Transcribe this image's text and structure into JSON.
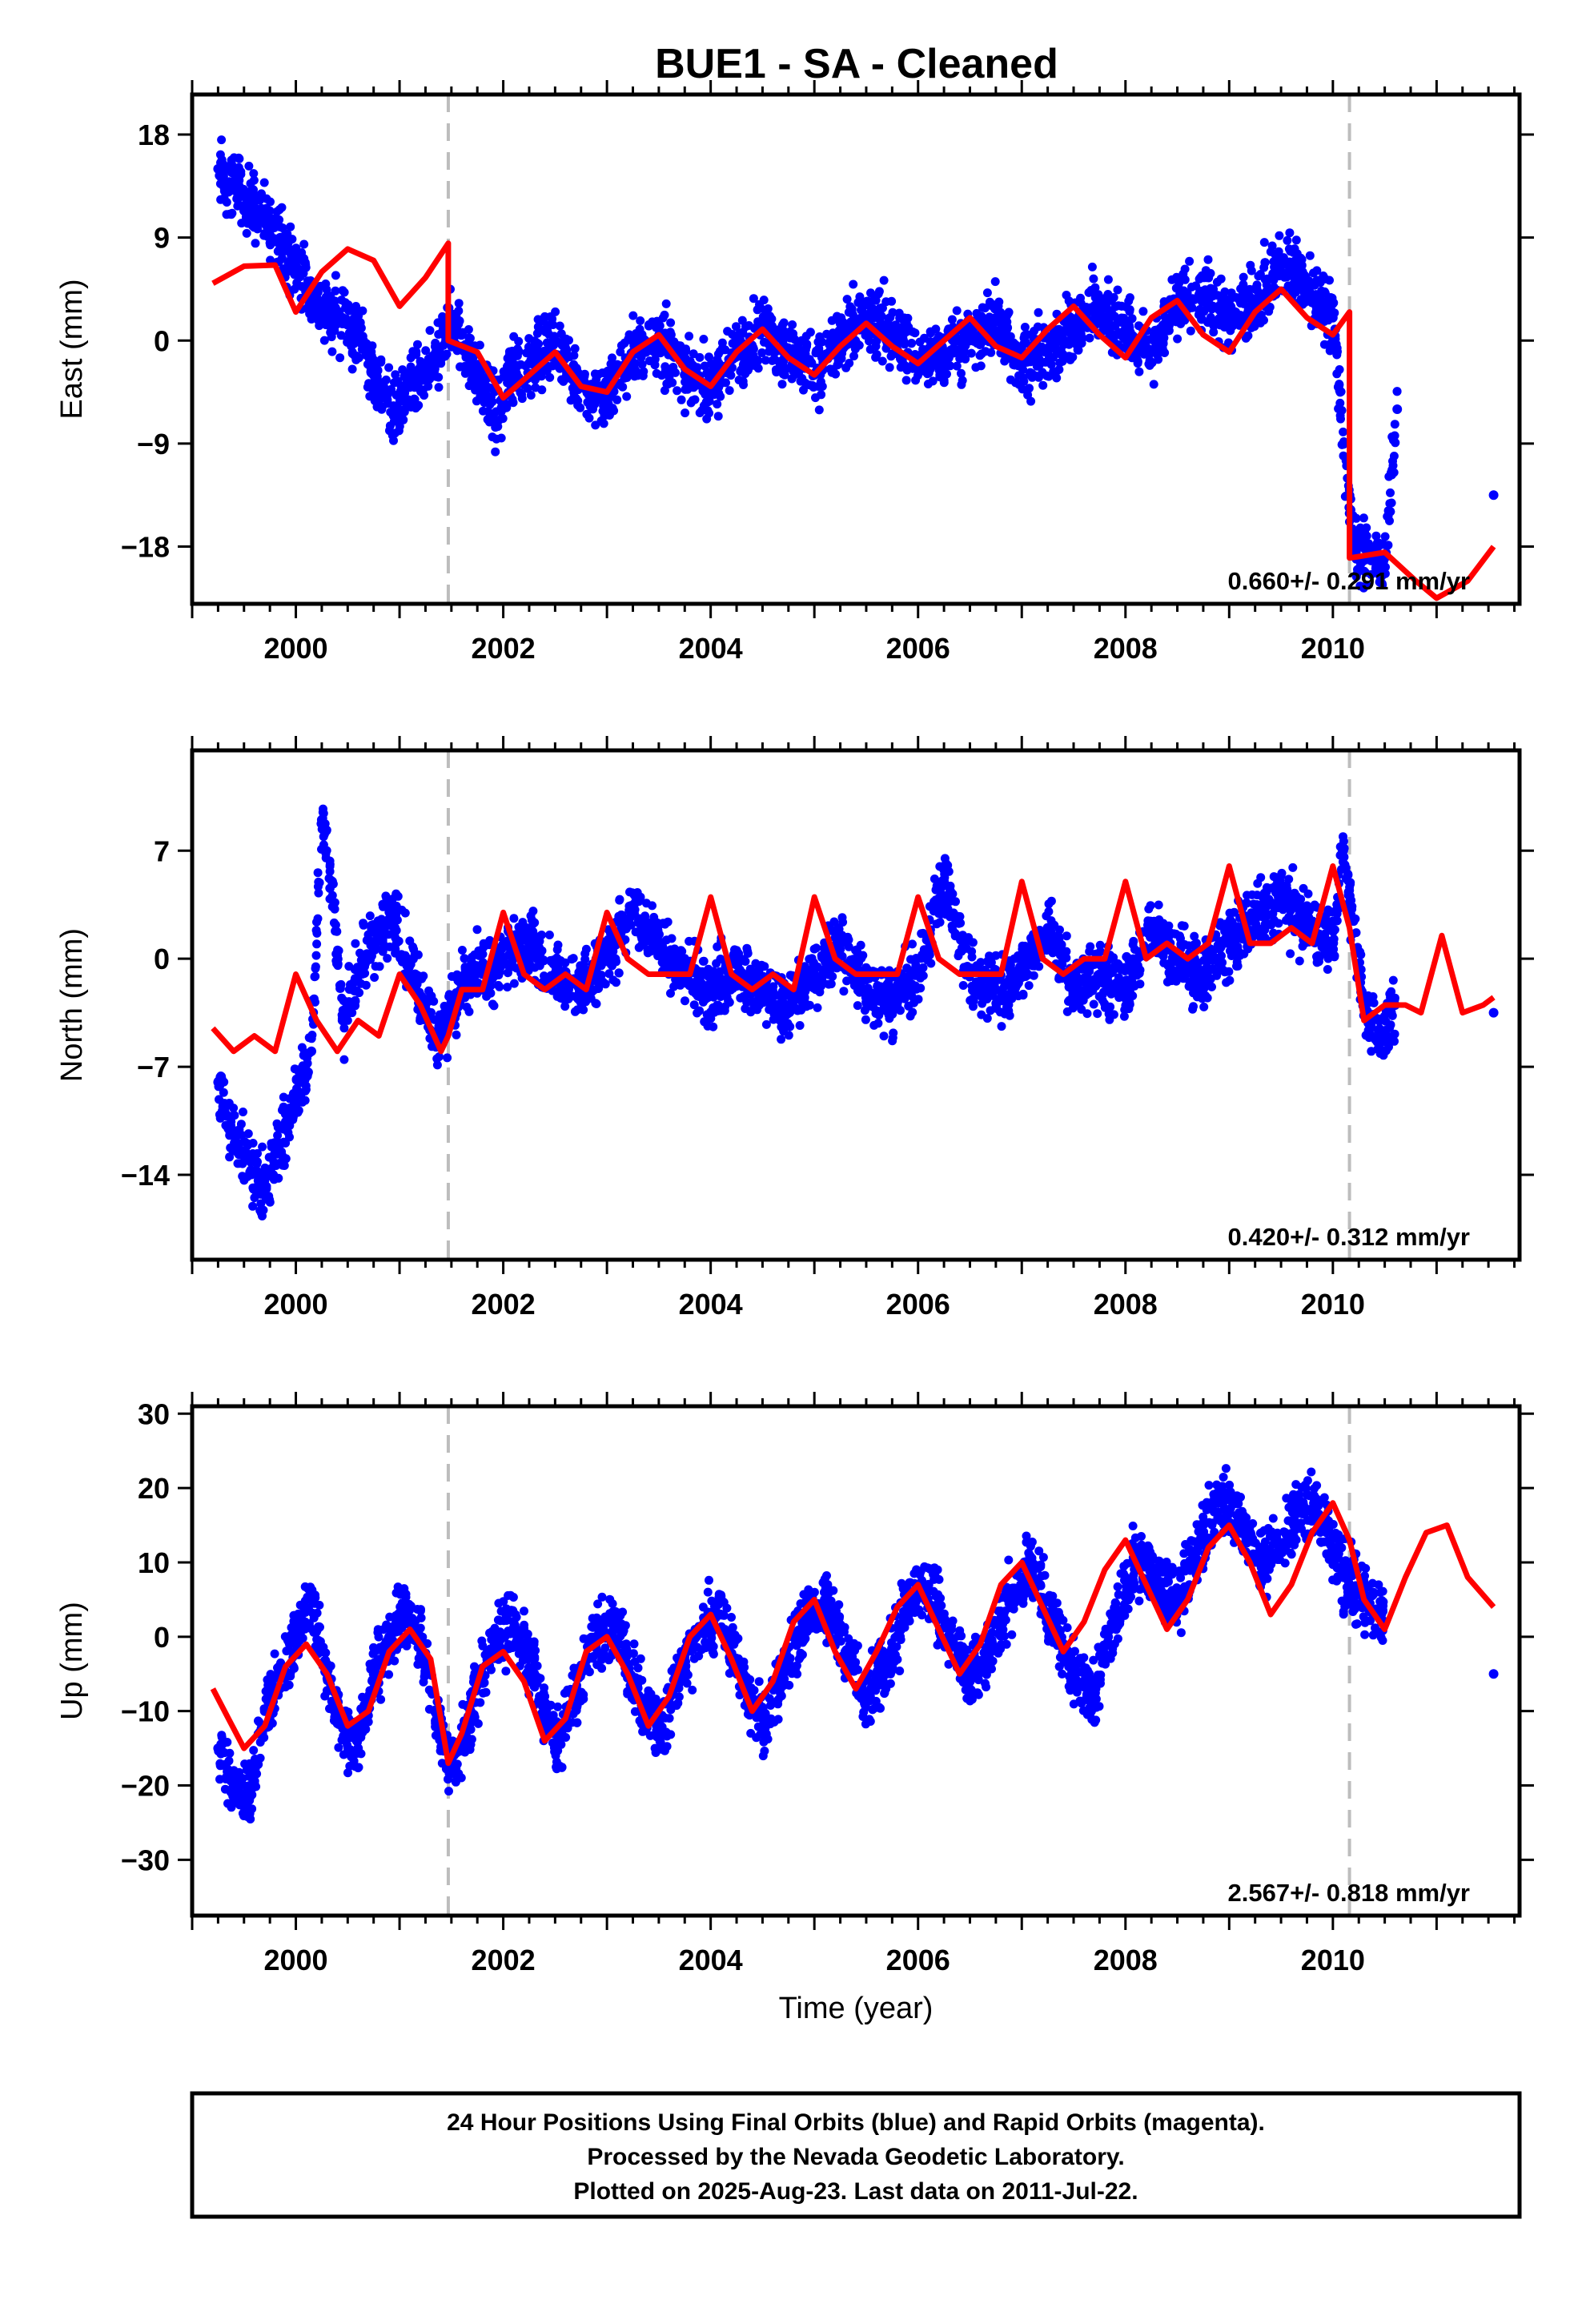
{
  "title": "BUE1  - SA - Cleaned",
  "colors": {
    "data": "#0000ff",
    "model": "#ff0000",
    "offset": "#bdbdbd",
    "frame": "#000000"
  },
  "footer": {
    "line1": "24 Hour Positions Using Final Orbits (blue) and Rapid Orbits (magenta).",
    "line2": "Processed by the Nevada Geodetic Laboratory.",
    "line3": "Plotted on 2025-Aug-23. Last data on 2011-Jul-22."
  },
  "chart_data": [
    {
      "type": "scatter",
      "panel": "east",
      "ylabel": "East (mm)",
      "xlabel": "",
      "xlim": [
        1999.0,
        2011.8
      ],
      "ylim": [
        -23,
        21.5
      ],
      "xticks": [
        "2000",
        "2002",
        "2004",
        "2006",
        "2008",
        "2010"
      ],
      "yticks": [
        "18",
        "9",
        "0",
        "−9",
        "−18"
      ],
      "ytick_values": [
        18,
        9,
        0,
        -9,
        -18
      ],
      "rate_label": "0.660+/- 0.291 mm/yr",
      "offsets": [
        2001.47,
        2010.16
      ],
      "series": [
        {
          "name": "",
          "kind": "points",
          "x": [
            1999.25,
            1999.35,
            1999.45,
            1999.55,
            1999.65,
            1999.75,
            1999.85,
            1999.95,
            2000.05,
            2000.15,
            2000.25,
            2000.35,
            2000.45,
            2000.55,
            2000.65,
            2000.75,
            2000.85,
            2000.95,
            2001.05,
            2001.15,
            2001.25,
            2001.35,
            2001.45,
            2001.55,
            2001.65,
            2001.75,
            2001.85,
            2001.95,
            2002.05,
            2002.25,
            2002.5,
            2002.75,
            2003.0,
            2003.25,
            2003.5,
            2003.75,
            2004.0,
            2004.25,
            2004.5,
            2004.75,
            2005.0,
            2005.25,
            2005.5,
            2005.75,
            2006.0,
            2006.25,
            2006.5,
            2006.75,
            2007.0,
            2007.25,
            2007.5,
            2007.75,
            2008.0,
            2008.25,
            2008.5,
            2008.75,
            2009.0,
            2009.25,
            2009.5,
            2009.75,
            2010.0,
            2010.2,
            2010.35,
            2010.5,
            2010.62,
            2011.55
          ],
          "y": [
            15,
            13,
            14,
            12,
            11,
            10,
            9,
            7,
            6,
            4,
            3,
            2,
            2,
            1,
            0,
            -3,
            -5,
            -6,
            -5,
            -4,
            -3,
            -2,
            1,
            1,
            -1,
            -3,
            -5,
            -7,
            -3,
            -2,
            0,
            -4,
            -5,
            -1,
            0,
            -3,
            -4,
            -1,
            1,
            -1,
            -3,
            0,
            2,
            1,
            -2,
            -1,
            0,
            2,
            -2,
            -1,
            1,
            3,
            1,
            -1,
            3,
            4,
            2,
            3,
            7,
            5,
            2,
            -18,
            -19,
            -19,
            -6,
            -13.5
          ]
        },
        {
          "name": "",
          "kind": "model",
          "x": [
            1999.2,
            1999.5,
            1999.8,
            2000.0,
            2000.25,
            2000.5,
            2000.75,
            2001.0,
            2001.25,
            2001.47,
            2001.47,
            2001.75,
            2002.0,
            2002.25,
            2002.5,
            2002.75,
            2003.0,
            2003.25,
            2003.5,
            2003.75,
            2004.0,
            2004.25,
            2004.5,
            2004.75,
            2005.0,
            2005.25,
            2005.5,
            2005.75,
            2006.0,
            2006.25,
            2006.5,
            2006.75,
            2007.0,
            2007.25,
            2007.5,
            2007.75,
            2008.0,
            2008.25,
            2008.5,
            2008.75,
            2009.0,
            2009.25,
            2009.5,
            2009.75,
            2010.0,
            2010.16,
            2010.16,
            2010.5,
            2010.8,
            2011.0,
            2011.3,
            2011.55
          ],
          "y": [
            5,
            6.5,
            6.6,
            2.5,
            6,
            8,
            7,
            3,
            5.5,
            8.5,
            0,
            -1,
            -5,
            -3,
            -1,
            -4,
            -4.5,
            -1,
            0.5,
            -2.5,
            -4,
            -1,
            1,
            -1.5,
            -3,
            -0.5,
            1.5,
            -0.5,
            -2,
            0,
            2,
            -0.5,
            -1.5,
            1,
            3,
            0.5,
            -1.5,
            2,
            3.5,
            0.5,
            -1,
            2.5,
            4.5,
            2,
            0.5,
            2.5,
            -19,
            -18.5,
            -21,
            -22.5,
            -21,
            -18
          ]
        }
      ]
    },
    {
      "type": "scatter",
      "panel": "north",
      "ylabel": "North (mm)",
      "xlabel": "",
      "xlim": [
        1999.0,
        2011.8
      ],
      "ylim": [
        -19.5,
        13.5
      ],
      "xticks": [
        "2000",
        "2002",
        "2004",
        "2006",
        "2008",
        "2010"
      ],
      "yticks": [
        "7",
        "0",
        "−7",
        "−14"
      ],
      "ytick_values": [
        7,
        0,
        -7,
        -14
      ],
      "rate_label": "0.420+/- 0.312 mm/yr",
      "offsets": [
        2001.47,
        2010.16
      ],
      "series": [
        {
          "name": "",
          "kind": "points",
          "x": [
            1999.25,
            1999.35,
            1999.45,
            1999.55,
            1999.65,
            1999.75,
            1999.85,
            1999.95,
            2000.05,
            2000.15,
            2000.25,
            2000.35,
            2000.45,
            2000.55,
            2000.65,
            2000.75,
            2000.85,
            2000.95,
            2001.05,
            2001.15,
            2001.25,
            2001.35,
            2001.45,
            2001.6,
            2001.8,
            2002.0,
            2002.25,
            2002.5,
            2002.75,
            2003.0,
            2003.25,
            2003.5,
            2003.75,
            2004.0,
            2004.25,
            2004.5,
            2004.75,
            2005.0,
            2005.25,
            2005.5,
            2005.75,
            2006.0,
            2006.25,
            2006.5,
            2006.75,
            2007.0,
            2007.25,
            2007.5,
            2007.75,
            2008.0,
            2008.25,
            2008.5,
            2008.75,
            2009.0,
            2009.25,
            2009.5,
            2009.75,
            2010.0,
            2010.1,
            2010.3,
            2010.45,
            2010.6,
            2011.55
          ],
          "y": [
            -8,
            -11,
            -12,
            -13,
            -15,
            -14,
            -12,
            -10,
            -8,
            -6,
            9,
            5,
            -4,
            -2,
            0,
            1,
            2,
            3,
            0,
            -1,
            -3,
            -5,
            -4,
            -2,
            -1,
            0,
            1,
            -1,
            -2,
            0,
            3,
            1,
            -1,
            -2,
            -1,
            -2,
            -3,
            -1,
            1,
            -2,
            -3,
            -1,
            5,
            -1,
            -2,
            -1,
            2,
            -2,
            -1,
            -2,
            2,
            0,
            -1,
            1,
            3,
            4,
            2,
            1,
            7,
            -3,
            -5,
            -3,
            -3.5
          ]
        },
        {
          "name": "",
          "kind": "model",
          "x": [
            1999.2,
            1999.4,
            1999.6,
            1999.8,
            2000.0,
            2000.2,
            2000.4,
            2000.6,
            2000.8,
            2001.0,
            2001.2,
            2001.4,
            2001.47,
            2001.6,
            2001.8,
            2002.0,
            2002.2,
            2002.4,
            2002.6,
            2002.8,
            2003.0,
            2003.2,
            2003.4,
            2003.6,
            2003.8,
            2004.0,
            2004.2,
            2004.4,
            2004.6,
            2004.8,
            2005.0,
            2005.2,
            2005.4,
            2005.6,
            2005.8,
            2006.0,
            2006.2,
            2006.4,
            2006.6,
            2006.8,
            2007.0,
            2007.2,
            2007.4,
            2007.6,
            2007.8,
            2008.0,
            2008.2,
            2008.4,
            2008.6,
            2008.8,
            2009.0,
            2009.2,
            2009.4,
            2009.6,
            2009.8,
            2010.0,
            2010.16,
            2010.3,
            2010.5,
            2010.7,
            2010.85,
            2011.05,
            2011.25,
            2011.45,
            2011.55
          ],
          "y": [
            -4.5,
            -6,
            -5,
            -6,
            -1,
            -4,
            -6,
            -4,
            -5,
            -1,
            -3,
            -6,
            -5,
            -2,
            -2,
            3,
            -1,
            -2,
            -1,
            -2,
            3,
            0,
            -1,
            -1,
            -1,
            4,
            -1,
            -2,
            -1,
            -2,
            4,
            0,
            -1,
            -1,
            -1,
            4,
            0,
            -1,
            -1,
            -1,
            5,
            0,
            -1,
            0,
            0,
            5,
            0,
            1,
            0,
            1,
            6,
            1,
            1,
            2,
            1,
            6,
            2,
            -4,
            -3,
            -3,
            -3.5,
            1.5,
            -3.5,
            -3,
            -2.5
          ]
        }
      ]
    },
    {
      "type": "scatter",
      "panel": "up",
      "ylabel": "Up (mm)",
      "xlabel": "Time (year)",
      "xlim": [
        1999.0,
        2011.8
      ],
      "ylim": [
        -37.5,
        31
      ],
      "xticks": [
        "2000",
        "2002",
        "2004",
        "2006",
        "2008",
        "2010"
      ],
      "yticks": [
        "30",
        "20",
        "10",
        "0",
        "−10",
        "−20",
        "−30"
      ],
      "ytick_values": [
        30,
        20,
        10,
        0,
        -10,
        -20,
        -30
      ],
      "rate_label": "2.567+/- 0.818 mm/yr",
      "offsets": [
        2001.47,
        2010.16
      ],
      "series": [
        {
          "name": "",
          "kind": "points",
          "x": [
            1999.25,
            1999.4,
            1999.55,
            1999.7,
            1999.85,
            2000.0,
            2000.15,
            2000.3,
            2000.45,
            2000.6,
            2000.75,
            2000.9,
            2001.05,
            2001.2,
            2001.35,
            2001.5,
            2001.65,
            2001.8,
            2001.95,
            2002.1,
            2002.3,
            2002.5,
            2002.7,
            2002.9,
            2003.1,
            2003.3,
            2003.5,
            2003.7,
            2003.9,
            2004.1,
            2004.3,
            2004.5,
            2004.7,
            2004.9,
            2005.1,
            2005.3,
            2005.5,
            2005.7,
            2005.9,
            2006.1,
            2006.3,
            2006.5,
            2006.7,
            2006.9,
            2007.1,
            2007.3,
            2007.5,
            2007.7,
            2007.9,
            2008.1,
            2008.3,
            2008.5,
            2008.7,
            2008.9,
            2009.1,
            2009.3,
            2009.5,
            2009.7,
            2009.9,
            2010.1,
            2010.3,
            2010.5,
            2011.55
          ],
          "y": [
            -15,
            -20,
            -22,
            -10,
            -5,
            0,
            5,
            -5,
            -12,
            -15,
            -5,
            0,
            3,
            0,
            -10,
            -18,
            -12,
            -5,
            0,
            2,
            -5,
            -15,
            -8,
            0,
            2,
            -8,
            -13,
            -5,
            1,
            3,
            -5,
            -12,
            -5,
            2,
            5,
            -2,
            -8,
            -3,
            5,
            7,
            0,
            -6,
            -2,
            6,
            10,
            2,
            -5,
            -8,
            3,
            10,
            8,
            5,
            12,
            18,
            16,
            10,
            12,
            18,
            16,
            8,
            5,
            2,
            -5
          ]
        },
        {
          "name": "",
          "kind": "model",
          "x": [
            1999.2,
            1999.35,
            1999.5,
            1999.7,
            1999.9,
            2000.1,
            2000.3,
            2000.5,
            2000.7,
            2000.9,
            2001.1,
            2001.3,
            2001.47,
            2001.6,
            2001.8,
            2002.0,
            2002.2,
            2002.4,
            2002.6,
            2002.8,
            2003.0,
            2003.2,
            2003.4,
            2003.6,
            2003.8,
            2004.0,
            2004.2,
            2004.4,
            2004.6,
            2004.8,
            2005.0,
            2005.2,
            2005.4,
            2005.6,
            2005.8,
            2006.0,
            2006.2,
            2006.4,
            2006.6,
            2006.8,
            2007.0,
            2007.2,
            2007.4,
            2007.6,
            2007.8,
            2008.0,
            2008.2,
            2008.4,
            2008.6,
            2008.8,
            2009.0,
            2009.2,
            2009.4,
            2009.6,
            2009.8,
            2010.0,
            2010.16,
            2010.3,
            2010.5,
            2010.7,
            2010.9,
            2011.1,
            2011.3,
            2011.55
          ],
          "y": [
            -7,
            -11,
            -15,
            -12,
            -4,
            -1,
            -5,
            -12,
            -10,
            -2,
            1,
            -3,
            -17,
            -13,
            -4,
            -2,
            -6,
            -14,
            -11,
            -2,
            0,
            -5,
            -12,
            -8,
            0,
            3,
            -3,
            -10,
            -6,
            2,
            5,
            -2,
            -7,
            -2,
            4,
            7,
            1,
            -5,
            -1,
            7,
            10,
            4,
            -2,
            2,
            9,
            13,
            7,
            1,
            5,
            12,
            15,
            10,
            3,
            7,
            14,
            18,
            13,
            5,
            1,
            8,
            14,
            15,
            8,
            4
          ]
        }
      ]
    }
  ]
}
